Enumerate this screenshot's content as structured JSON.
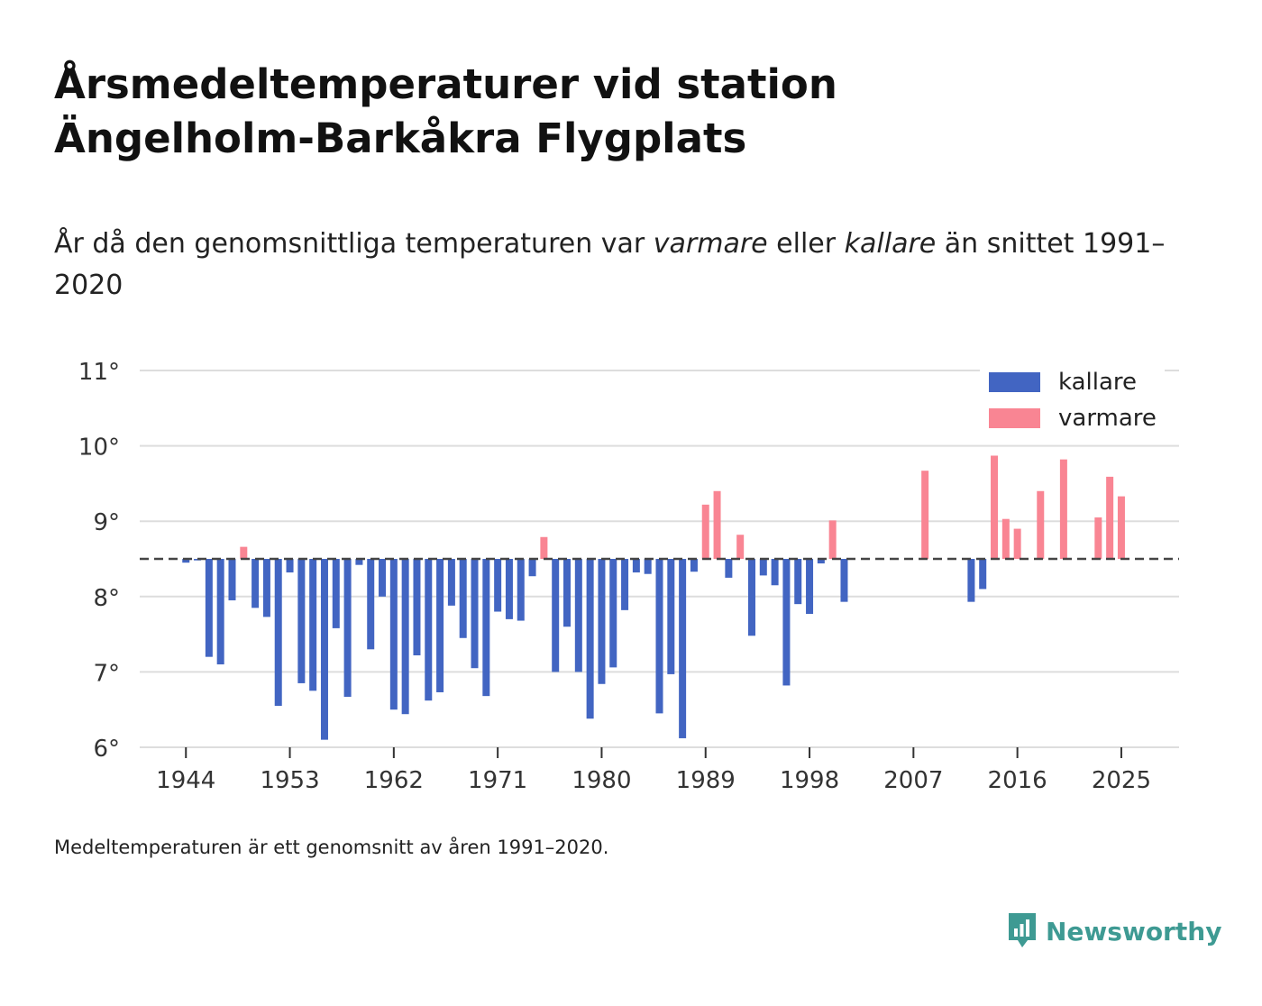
{
  "title_line1": "Årsmedeltemperaturer vid station",
  "title_line2": "Ängelholm-Barkåkra Flygplats",
  "subtitle": {
    "part1": "År då den genomsnittliga temperaturen var ",
    "warm_word": "varmare",
    "part2": " eller ",
    "cold_word": "kallare",
    "part3": " än snittet 1991–2020"
  },
  "footnote": "Medeltemperaturen är ett genomsnitt av åren 1991–2020.",
  "brand": "Newsworthy",
  "colors": {
    "cold": "#4265c2",
    "warm": "#f98593",
    "grid": "#dddddd",
    "reference": "#444444",
    "brand": "#3e9a93"
  },
  "chart_data": {
    "type": "bar",
    "title": "Årsmedeltemperaturer vid station Ängelholm-Barkåkra Flygplats",
    "xlabel": "",
    "ylabel": "",
    "baseline": 8.5,
    "ylim": [
      6,
      11
    ],
    "xlim": [
      1940,
      2030
    ],
    "y_ticks": [
      6,
      7,
      8,
      9,
      10,
      11
    ],
    "y_tick_labels": [
      "6°",
      "7°",
      "8°",
      "9°",
      "10°",
      "11°"
    ],
    "x_ticks": [
      1944,
      1953,
      1962,
      1971,
      1980,
      1989,
      1998,
      2007,
      2016,
      2025
    ],
    "x_tick_labels": [
      "1944",
      "1953",
      "1962",
      "1971",
      "1980",
      "1989",
      "1998",
      "2007",
      "2016",
      "2025"
    ],
    "legend": [
      {
        "key": "cold",
        "label": "kallare"
      },
      {
        "key": "warm",
        "label": "varmare"
      }
    ],
    "legend_position": "top-right",
    "series": [
      {
        "name": "Årsmedeltemperatur",
        "years": [
          1944,
          1945,
          1946,
          1947,
          1948,
          1949,
          1950,
          1951,
          1952,
          1953,
          1954,
          1955,
          1956,
          1957,
          1958,
          1959,
          1960,
          1961,
          1962,
          1963,
          1964,
          1965,
          1966,
          1967,
          1968,
          1969,
          1970,
          1971,
          1972,
          1973,
          1974,
          1975,
          1976,
          1977,
          1978,
          1979,
          1980,
          1981,
          1982,
          1983,
          1984,
          1985,
          1986,
          1987,
          1988,
          1989,
          1990,
          1991,
          1992,
          1993,
          1994,
          1995,
          1996,
          1997,
          1998,
          1999,
          2000,
          2001,
          2012,
          2013,
          2014,
          2015,
          2016,
          2018,
          2020,
          2023,
          2024,
          2025
        ],
        "values": [
          8.45,
          8.48,
          7.2,
          7.1,
          7.95,
          8.66,
          7.85,
          7.73,
          6.55,
          8.32,
          6.85,
          6.75,
          6.1,
          7.58,
          6.67,
          8.42,
          7.3,
          8.0,
          6.5,
          6.44,
          7.22,
          6.62,
          6.73,
          7.88,
          7.45,
          7.05,
          6.68,
          7.8,
          7.7,
          7.68,
          8.27,
          8.79,
          7.0,
          7.6,
          7.0,
          6.38,
          6.84,
          7.06,
          7.82,
          8.32,
          8.3,
          6.45,
          6.97,
          6.12,
          8.33,
          9.22,
          9.4,
          8.25,
          8.82,
          7.48,
          8.28,
          8.15,
          6.82,
          7.9,
          7.77,
          8.44,
          9.01,
          7.93,
          7.93,
          8.1,
          9.87,
          9.03,
          8.9,
          9.4,
          9.82,
          9.05,
          9.59,
          9.33
        ]
      }
    ],
    "standalone_points": [
      {
        "year": 2008,
        "value": 9.67
      }
    ]
  }
}
